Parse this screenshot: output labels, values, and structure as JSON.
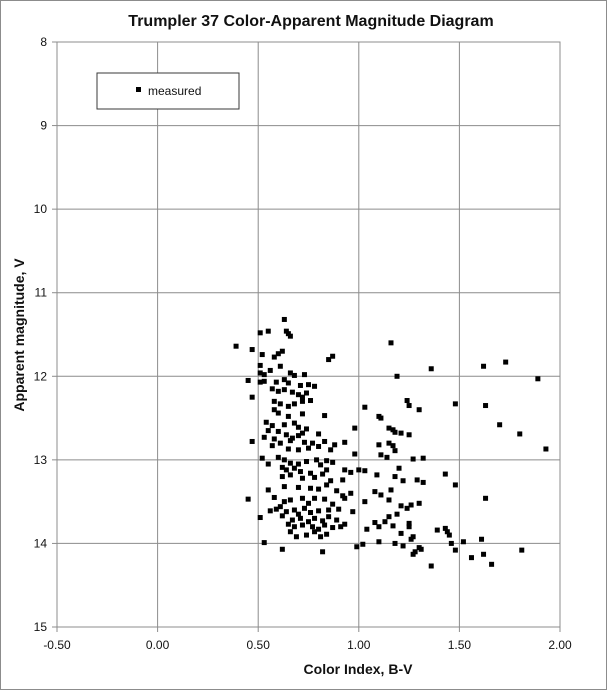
{
  "chart_data": {
    "type": "scatter",
    "title": "Trumpler 37 Color-Apparent Magnitude Diagram",
    "xlabel": "Color Index, B-V",
    "ylabel": "Apparent magnitude, V",
    "xlim": [
      -0.5,
      2.0
    ],
    "ylim": [
      8,
      15
    ],
    "y_inverted": true,
    "x_ticks": [
      "-0.50",
      "0.00",
      "0.50",
      "1.00",
      "1.50",
      "2.00"
    ],
    "y_ticks": [
      "8",
      "9",
      "10",
      "11",
      "12",
      "13",
      "14",
      "15"
    ],
    "grid": true,
    "legend_position": "top-left",
    "marker_color": "#000000",
    "series": [
      {
        "name": "measured",
        "points": [
          [
            0.39,
            11.64
          ],
          [
            0.51,
            11.48
          ],
          [
            0.55,
            11.46
          ],
          [
            0.63,
            11.32
          ],
          [
            0.64,
            11.46
          ],
          [
            0.65,
            11.49
          ],
          [
            0.66,
            11.52
          ],
          [
            0.6,
            11.73
          ],
          [
            0.62,
            11.7
          ],
          [
            0.52,
            11.74
          ],
          [
            0.58,
            11.77
          ],
          [
            0.47,
            11.68
          ],
          [
            0.85,
            11.8
          ],
          [
            0.87,
            11.76
          ],
          [
            1.16,
            11.6
          ],
          [
            0.51,
            11.87
          ],
          [
            0.53,
            11.98
          ],
          [
            0.51,
            11.96
          ],
          [
            0.56,
            11.93
          ],
          [
            0.61,
            11.88
          ],
          [
            0.66,
            11.96
          ],
          [
            0.68,
            11.99
          ],
          [
            0.73,
            11.98
          ],
          [
            1.19,
            12.0
          ],
          [
            1.36,
            11.91
          ],
          [
            1.62,
            11.88
          ],
          [
            1.73,
            11.83
          ],
          [
            1.89,
            12.03
          ],
          [
            0.45,
            12.05
          ],
          [
            0.51,
            12.07
          ],
          [
            0.53,
            12.06
          ],
          [
            0.59,
            12.07
          ],
          [
            0.63,
            12.04
          ],
          [
            0.65,
            12.08
          ],
          [
            0.71,
            12.11
          ],
          [
            0.75,
            12.1
          ],
          [
            0.78,
            12.12
          ],
          [
            0.57,
            12.15
          ],
          [
            0.6,
            12.18
          ],
          [
            0.63,
            12.16
          ],
          [
            0.67,
            12.19
          ],
          [
            0.7,
            12.22
          ],
          [
            0.72,
            12.25
          ],
          [
            0.74,
            12.2
          ],
          [
            0.47,
            12.25
          ],
          [
            0.58,
            12.3
          ],
          [
            0.61,
            12.33
          ],
          [
            0.65,
            12.36
          ],
          [
            0.68,
            12.33
          ],
          [
            0.72,
            12.3
          ],
          [
            0.76,
            12.29
          ],
          [
            1.24,
            12.29
          ],
          [
            1.25,
            12.35
          ],
          [
            1.3,
            12.4
          ],
          [
            1.48,
            12.33
          ],
          [
            1.63,
            12.35
          ],
          [
            0.58,
            12.4
          ],
          [
            0.6,
            12.44
          ],
          [
            0.65,
            12.48
          ],
          [
            0.72,
            12.45
          ],
          [
            0.83,
            12.47
          ],
          [
            1.03,
            12.37
          ],
          [
            1.1,
            12.48
          ],
          [
            1.11,
            12.5
          ],
          [
            0.54,
            12.55
          ],
          [
            0.57,
            12.59
          ],
          [
            0.63,
            12.58
          ],
          [
            0.68,
            12.56
          ],
          [
            0.7,
            12.61
          ],
          [
            0.74,
            12.63
          ],
          [
            0.98,
            12.62
          ],
          [
            1.15,
            12.62
          ],
          [
            1.17,
            12.64
          ],
          [
            1.7,
            12.58
          ],
          [
            0.55,
            12.65
          ],
          [
            0.6,
            12.66
          ],
          [
            0.64,
            12.7
          ],
          [
            0.67,
            12.74
          ],
          [
            0.7,
            12.71
          ],
          [
            0.72,
            12.68
          ],
          [
            0.8,
            12.69
          ],
          [
            1.18,
            12.67
          ],
          [
            1.21,
            12.68
          ],
          [
            1.25,
            12.7
          ],
          [
            1.8,
            12.69
          ],
          [
            0.47,
            12.78
          ],
          [
            0.53,
            12.73
          ],
          [
            0.58,
            12.75
          ],
          [
            0.61,
            12.8
          ],
          [
            0.66,
            12.77
          ],
          [
            0.73,
            12.79
          ],
          [
            0.77,
            12.8
          ],
          [
            0.83,
            12.78
          ],
          [
            0.88,
            12.82
          ],
          [
            0.93,
            12.79
          ],
          [
            1.1,
            12.82
          ],
          [
            1.15,
            12.8
          ],
          [
            1.17,
            12.83
          ],
          [
            1.93,
            12.87
          ],
          [
            0.57,
            12.83
          ],
          [
            0.65,
            12.87
          ],
          [
            0.7,
            12.88
          ],
          [
            0.75,
            12.86
          ],
          [
            0.8,
            12.84
          ],
          [
            0.86,
            12.88
          ],
          [
            0.98,
            12.93
          ],
          [
            1.11,
            12.94
          ],
          [
            1.14,
            12.97
          ],
          [
            1.18,
            12.89
          ],
          [
            1.27,
            12.99
          ],
          [
            1.32,
            12.98
          ],
          [
            0.52,
            12.98
          ],
          [
            0.6,
            12.97
          ],
          [
            0.63,
            13.0
          ],
          [
            0.66,
            13.04
          ],
          [
            0.7,
            13.05
          ],
          [
            0.74,
            13.02
          ],
          [
            0.79,
            13.0
          ],
          [
            0.81,
            13.06
          ],
          [
            0.84,
            13.01
          ],
          [
            0.87,
            13.03
          ],
          [
            0.55,
            13.05
          ],
          [
            0.62,
            13.09
          ],
          [
            0.64,
            13.12
          ],
          [
            0.68,
            13.1
          ],
          [
            0.71,
            13.14
          ],
          [
            0.76,
            13.16
          ],
          [
            0.84,
            13.12
          ],
          [
            0.93,
            13.12
          ],
          [
            0.96,
            13.15
          ],
          [
            1.0,
            13.12
          ],
          [
            1.03,
            13.13
          ],
          [
            1.2,
            13.1
          ],
          [
            0.62,
            13.2
          ],
          [
            0.66,
            13.18
          ],
          [
            0.72,
            13.22
          ],
          [
            0.78,
            13.21
          ],
          [
            0.82,
            13.17
          ],
          [
            0.86,
            13.25
          ],
          [
            0.92,
            13.24
          ],
          [
            1.09,
            13.18
          ],
          [
            1.18,
            13.2
          ],
          [
            1.22,
            13.25
          ],
          [
            1.29,
            13.24
          ],
          [
            1.32,
            13.27
          ],
          [
            1.43,
            13.17
          ],
          [
            1.48,
            13.3
          ],
          [
            0.55,
            13.36
          ],
          [
            0.63,
            13.32
          ],
          [
            0.7,
            13.33
          ],
          [
            0.76,
            13.34
          ],
          [
            0.8,
            13.35
          ],
          [
            0.84,
            13.3
          ],
          [
            0.89,
            13.37
          ],
          [
            0.92,
            13.43
          ],
          [
            0.96,
            13.4
          ],
          [
            1.08,
            13.38
          ],
          [
            1.11,
            13.42
          ],
          [
            1.16,
            13.36
          ],
          [
            0.45,
            13.47
          ],
          [
            0.58,
            13.45
          ],
          [
            0.63,
            13.5
          ],
          [
            0.66,
            13.48
          ],
          [
            0.72,
            13.46
          ],
          [
            0.75,
            13.52
          ],
          [
            0.78,
            13.46
          ],
          [
            0.83,
            13.47
          ],
          [
            0.87,
            13.53
          ],
          [
            0.93,
            13.46
          ],
          [
            1.03,
            13.5
          ],
          [
            1.15,
            13.48
          ],
          [
            1.21,
            13.55
          ],
          [
            1.24,
            13.58
          ],
          [
            1.26,
            13.54
          ],
          [
            1.3,
            13.52
          ],
          [
            1.63,
            13.46
          ],
          [
            0.56,
            13.61
          ],
          [
            0.59,
            13.59
          ],
          [
            0.61,
            13.56
          ],
          [
            0.64,
            13.62
          ],
          [
            0.68,
            13.6
          ],
          [
            0.7,
            13.65
          ],
          [
            0.73,
            13.58
          ],
          [
            0.76,
            13.63
          ],
          [
            0.8,
            13.61
          ],
          [
            0.85,
            13.6
          ],
          [
            0.9,
            13.59
          ],
          [
            0.97,
            13.62
          ],
          [
            1.15,
            13.68
          ],
          [
            1.19,
            13.65
          ],
          [
            0.51,
            13.69
          ],
          [
            0.62,
            13.67
          ],
          [
            0.67,
            13.72
          ],
          [
            0.71,
            13.7
          ],
          [
            0.75,
            13.74
          ],
          [
            0.78,
            13.7
          ],
          [
            0.82,
            13.73
          ],
          [
            0.85,
            13.68
          ],
          [
            0.89,
            13.72
          ],
          [
            0.93,
            13.77
          ],
          [
            1.08,
            13.75
          ],
          [
            1.13,
            13.74
          ],
          [
            1.25,
            13.76
          ],
          [
            0.65,
            13.77
          ],
          [
            0.68,
            13.8
          ],
          [
            0.72,
            13.78
          ],
          [
            0.77,
            13.8
          ],
          [
            0.8,
            13.83
          ],
          [
            0.83,
            13.78
          ],
          [
            0.87,
            13.81
          ],
          [
            0.91,
            13.8
          ],
          [
            1.04,
            13.83
          ],
          [
            1.1,
            13.8
          ],
          [
            1.17,
            13.79
          ],
          [
            1.25,
            13.8
          ],
          [
            1.39,
            13.84
          ],
          [
            1.43,
            13.82
          ],
          [
            1.44,
            13.86
          ],
          [
            1.21,
            13.88
          ],
          [
            0.66,
            13.86
          ],
          [
            0.69,
            13.92
          ],
          [
            0.74,
            13.9
          ],
          [
            0.78,
            13.86
          ],
          [
            0.81,
            13.92
          ],
          [
            0.84,
            13.89
          ],
          [
            1.27,
            13.92
          ],
          [
            1.45,
            13.9
          ],
          [
            1.26,
            13.95
          ],
          [
            1.61,
            13.95
          ],
          [
            0.53,
            13.99
          ],
          [
            1.1,
            13.98
          ],
          [
            1.18,
            14.0
          ],
          [
            1.22,
            14.03
          ],
          [
            1.46,
            14.0
          ],
          [
            1.52,
            13.98
          ],
          [
            0.62,
            14.07
          ],
          [
            0.82,
            14.1
          ],
          [
            0.99,
            14.04
          ],
          [
            1.02,
            14.01
          ],
          [
            1.3,
            14.05
          ],
          [
            1.31,
            14.07
          ],
          [
            1.28,
            14.1
          ],
          [
            1.48,
            14.08
          ],
          [
            1.81,
            14.08
          ],
          [
            1.27,
            14.13
          ],
          [
            1.56,
            14.17
          ],
          [
            1.62,
            14.13
          ],
          [
            1.36,
            14.27
          ],
          [
            1.66,
            14.25
          ]
        ]
      }
    ]
  }
}
